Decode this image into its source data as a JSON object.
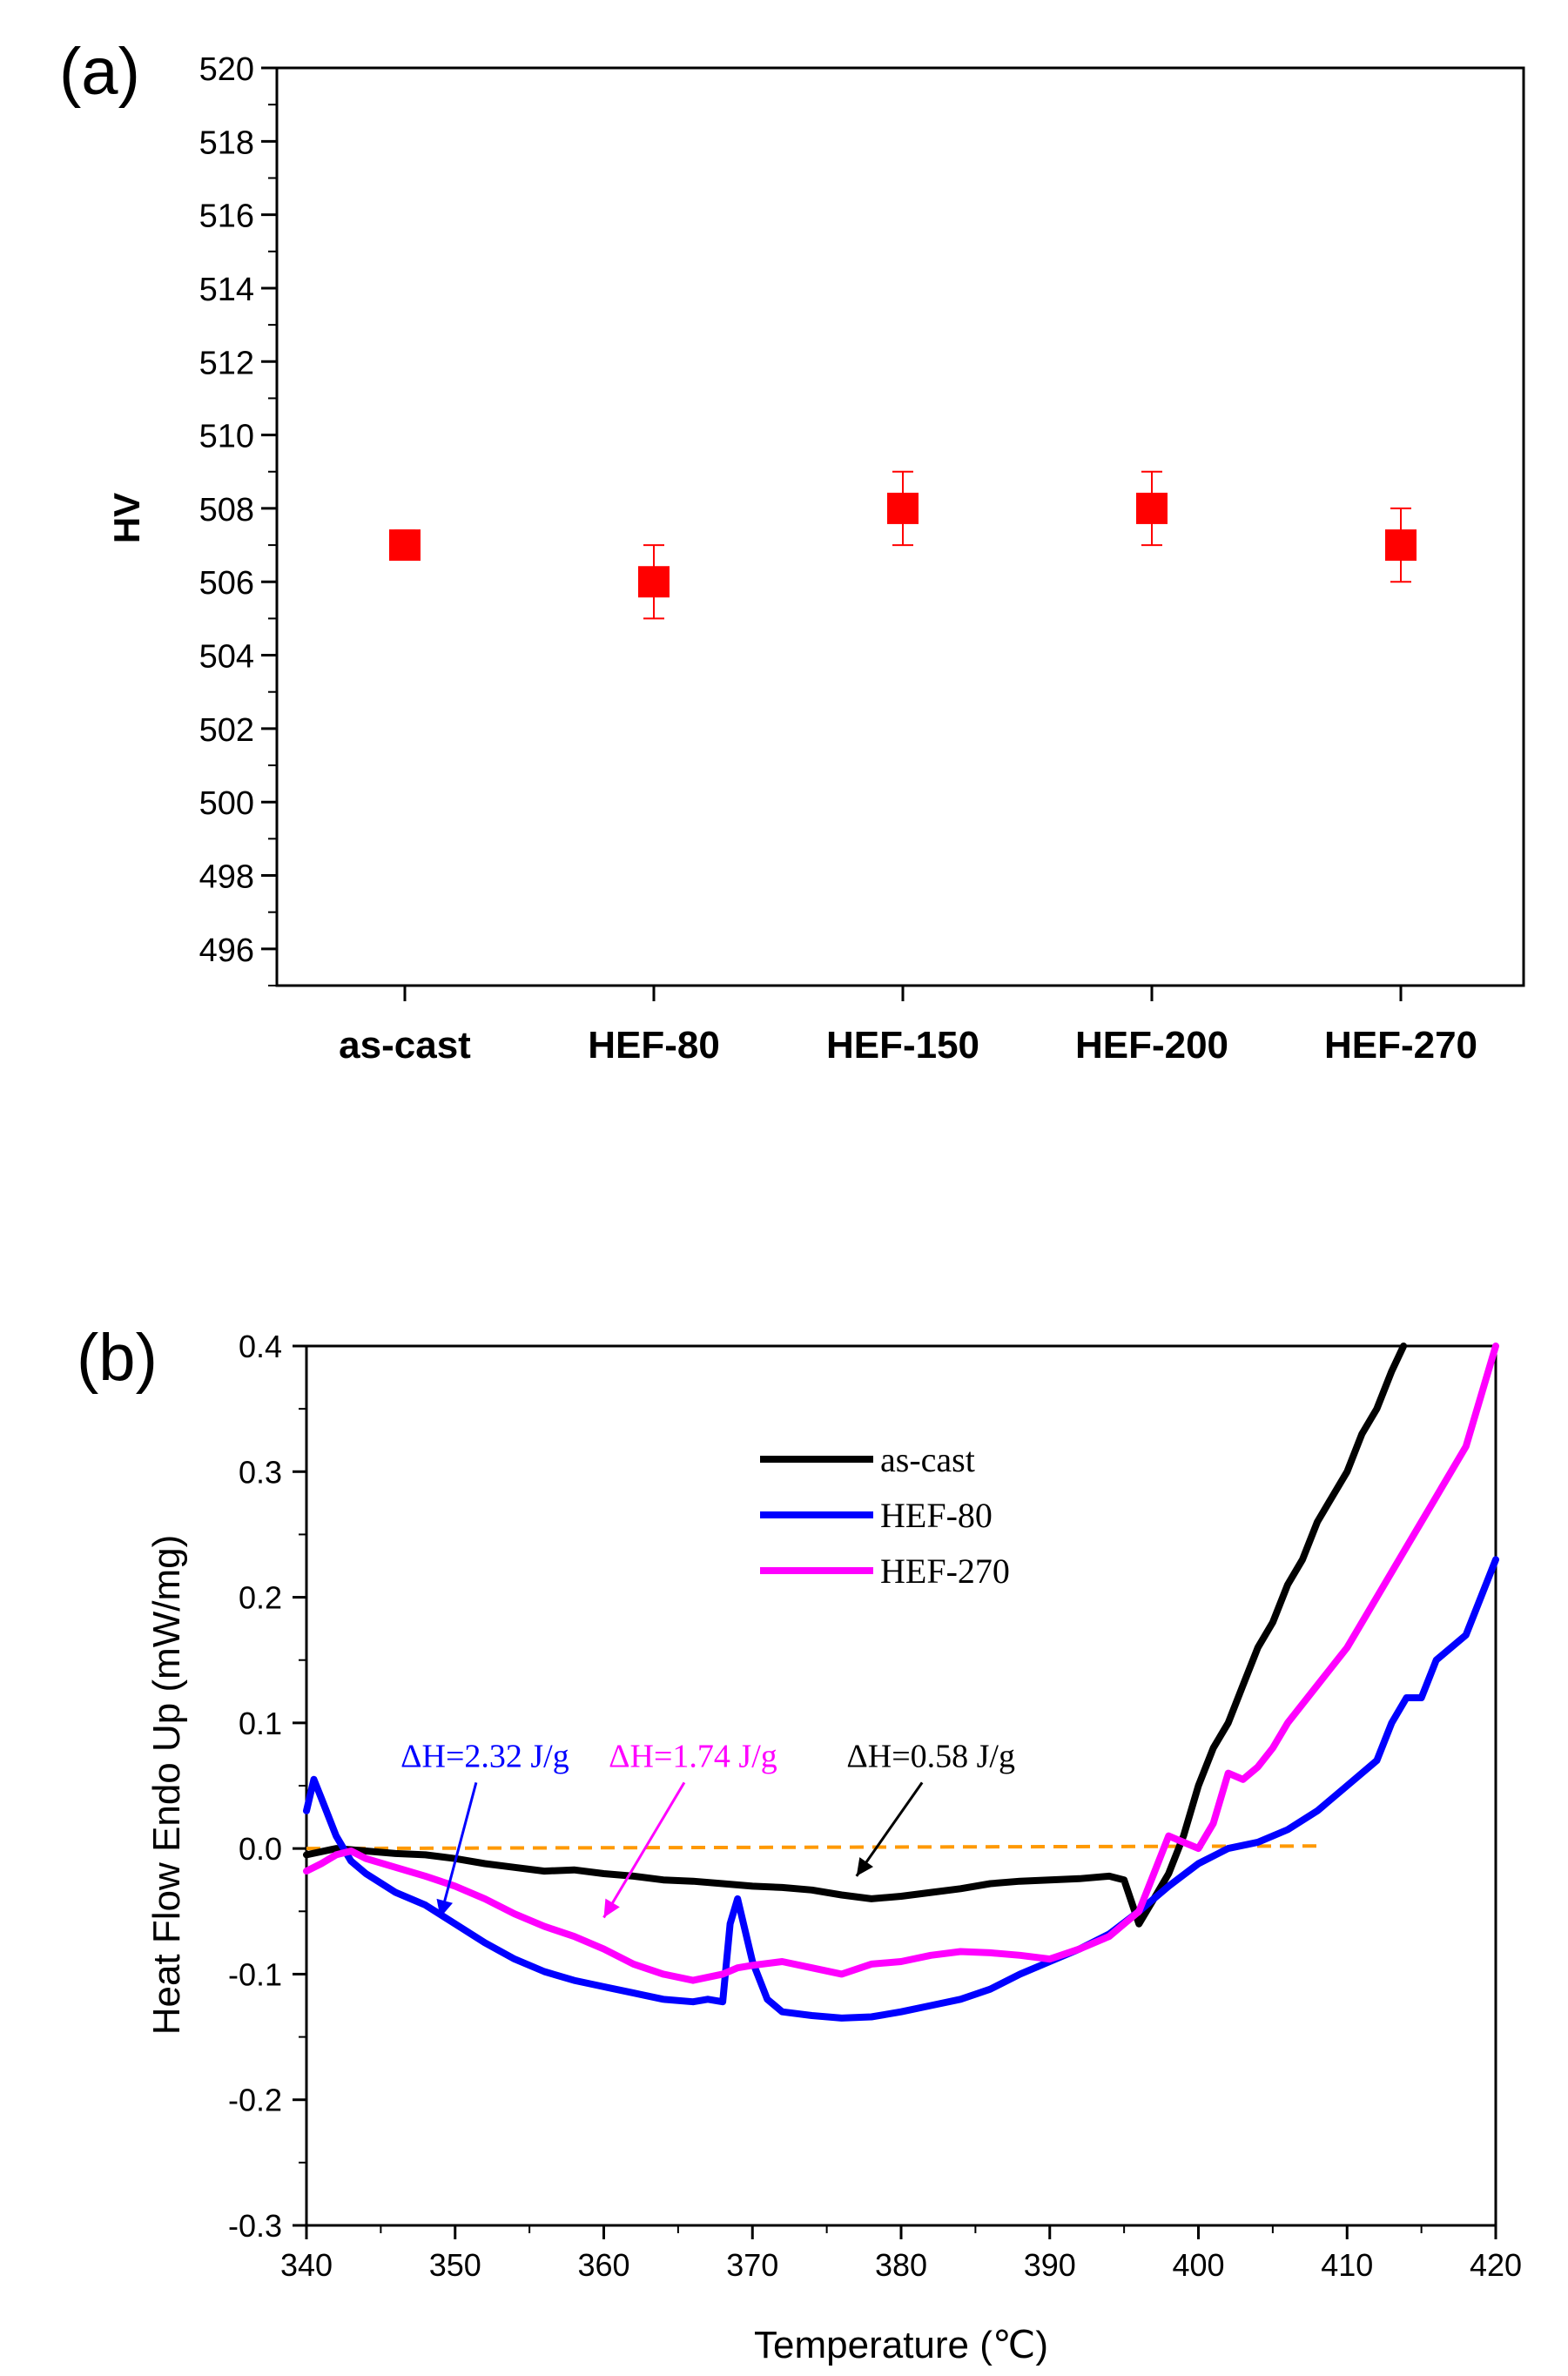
{
  "chart_data": [
    {
      "panel_label": "(a)",
      "type": "scatter",
      "ylabel": "HV",
      "xlabel": "",
      "categories": [
        "as-cast",
        "HEF-80",
        "HEF-150",
        "HEF-200",
        "HEF-270"
      ],
      "values": [
        507,
        506,
        508,
        508,
        507
      ],
      "errors": [
        [
          506.6,
          507.4
        ],
        [
          505,
          507
        ],
        [
          507,
          509
        ],
        [
          507,
          509
        ],
        [
          506,
          508
        ]
      ],
      "ylim": [
        495,
        520
      ],
      "yticks": [
        496,
        498,
        500,
        502,
        504,
        506,
        508,
        510,
        512,
        514,
        516,
        518,
        520
      ],
      "marker_color": "#ff0000"
    },
    {
      "panel_label": "(b)",
      "type": "line",
      "xlabel": "Temperature (℃)",
      "ylabel": "Heat Flow Endo Up (mW/mg)",
      "xlim": [
        340,
        420
      ],
      "ylim": [
        -0.3,
        0.4
      ],
      "xticks": [
        340,
        350,
        360,
        370,
        380,
        390,
        400,
        410,
        420
      ],
      "yticks": [
        "-0.3",
        "-0.2",
        "-0.1",
        "0.0",
        "0.1",
        "0.2",
        "0.3",
        "0.4"
      ],
      "legend_position": "top-center",
      "series": [
        {
          "name": "as-cast",
          "color": "#000000",
          "x": [
            340,
            342,
            344,
            346,
            348,
            350,
            352,
            354,
            356,
            358,
            360,
            362,
            364,
            366,
            368,
            370,
            372,
            374,
            376,
            378,
            380,
            382,
            384,
            386,
            388,
            390,
            392,
            394,
            395,
            396,
            397,
            398,
            399,
            400,
            401,
            402,
            403,
            404,
            405,
            406,
            407,
            408,
            409,
            410,
            411,
            412,
            413,
            413.8
          ],
          "y": [
            -0.005,
            0.0,
            -0.002,
            -0.004,
            -0.005,
            -0.008,
            -0.012,
            -0.015,
            -0.018,
            -0.017,
            -0.02,
            -0.022,
            -0.025,
            -0.026,
            -0.028,
            -0.03,
            -0.031,
            -0.033,
            -0.037,
            -0.04,
            -0.038,
            -0.035,
            -0.032,
            -0.028,
            -0.026,
            -0.025,
            -0.024,
            -0.022,
            -0.025,
            -0.06,
            -0.04,
            -0.02,
            0.01,
            0.05,
            0.08,
            0.1,
            0.13,
            0.16,
            0.18,
            0.21,
            0.23,
            0.26,
            0.28,
            0.3,
            0.33,
            0.35,
            0.38,
            0.4
          ]
        },
        {
          "name": "HEF-80",
          "color": "#0000ff",
          "x": [
            340,
            340.5,
            341,
            342,
            343,
            344,
            346,
            348,
            350,
            352,
            354,
            356,
            358,
            360,
            362,
            364,
            366,
            367,
            368,
            368.5,
            369,
            370,
            371,
            372,
            374,
            376,
            378,
            380,
            382,
            384,
            386,
            388,
            390,
            392,
            394,
            396,
            398,
            400,
            402,
            404,
            406,
            408,
            410,
            412,
            413,
            414,
            415,
            416,
            418,
            419,
            420
          ],
          "y": [
            0.03,
            0.055,
            0.04,
            0.01,
            -0.01,
            -0.02,
            -0.035,
            -0.045,
            -0.06,
            -0.075,
            -0.088,
            -0.098,
            -0.105,
            -0.11,
            -0.115,
            -0.12,
            -0.122,
            -0.12,
            -0.122,
            -0.06,
            -0.04,
            -0.09,
            -0.12,
            -0.13,
            -0.133,
            -0.135,
            -0.134,
            -0.13,
            -0.125,
            -0.12,
            -0.112,
            -0.1,
            -0.09,
            -0.08,
            -0.068,
            -0.05,
            -0.03,
            -0.012,
            0.0,
            0.005,
            0.015,
            0.03,
            0.05,
            0.07,
            0.1,
            0.12,
            0.12,
            0.15,
            0.17,
            0.2,
            0.23
          ]
        },
        {
          "name": "HEF-270",
          "color": "#ff00ff",
          "x": [
            340,
            341,
            342,
            343,
            344,
            346,
            348,
            350,
            352,
            354,
            356,
            358,
            360,
            362,
            364,
            366,
            368,
            369,
            370,
            372,
            374,
            376,
            378,
            380,
            382,
            384,
            386,
            388,
            390,
            392,
            394,
            396,
            397,
            398,
            399,
            400,
            401,
            402,
            403,
            404,
            405,
            406,
            408,
            410,
            412,
            414,
            416,
            418,
            419,
            420
          ],
          "y": [
            -0.018,
            -0.012,
            -0.005,
            -0.002,
            -0.008,
            -0.015,
            -0.022,
            -0.03,
            -0.04,
            -0.052,
            -0.062,
            -0.07,
            -0.08,
            -0.092,
            -0.1,
            -0.105,
            -0.1,
            -0.095,
            -0.093,
            -0.09,
            -0.095,
            -0.1,
            -0.092,
            -0.09,
            -0.085,
            -0.082,
            -0.083,
            -0.085,
            -0.088,
            -0.08,
            -0.07,
            -0.05,
            -0.02,
            0.01,
            0.005,
            0.0,
            0.02,
            0.06,
            0.055,
            0.065,
            0.08,
            0.1,
            0.13,
            0.16,
            0.2,
            0.24,
            0.28,
            0.32,
            0.36,
            0.4
          ]
        }
      ],
      "baseline": {
        "name": "baseline",
        "color": "#ff9900",
        "x": [
          340,
          408
        ],
        "y": [
          0.0,
          0.002
        ]
      },
      "annotations": [
        {
          "text": "ΔH=2.32 J/g",
          "color": "#0000ff",
          "x": 352,
          "y": 0.065,
          "arrow_to_x": 349,
          "arrow_to_y": -0.055
        },
        {
          "text": "ΔH=1.74 J/g",
          "color": "#ff00ff",
          "x": 366,
          "y": 0.065,
          "arrow_to_x": 360,
          "arrow_to_y": -0.055
        },
        {
          "text": "ΔH=0.58 J/g",
          "color": "#000000",
          "x": 382,
          "y": 0.065,
          "arrow_to_x": 377,
          "arrow_to_y": -0.022
        }
      ]
    }
  ]
}
